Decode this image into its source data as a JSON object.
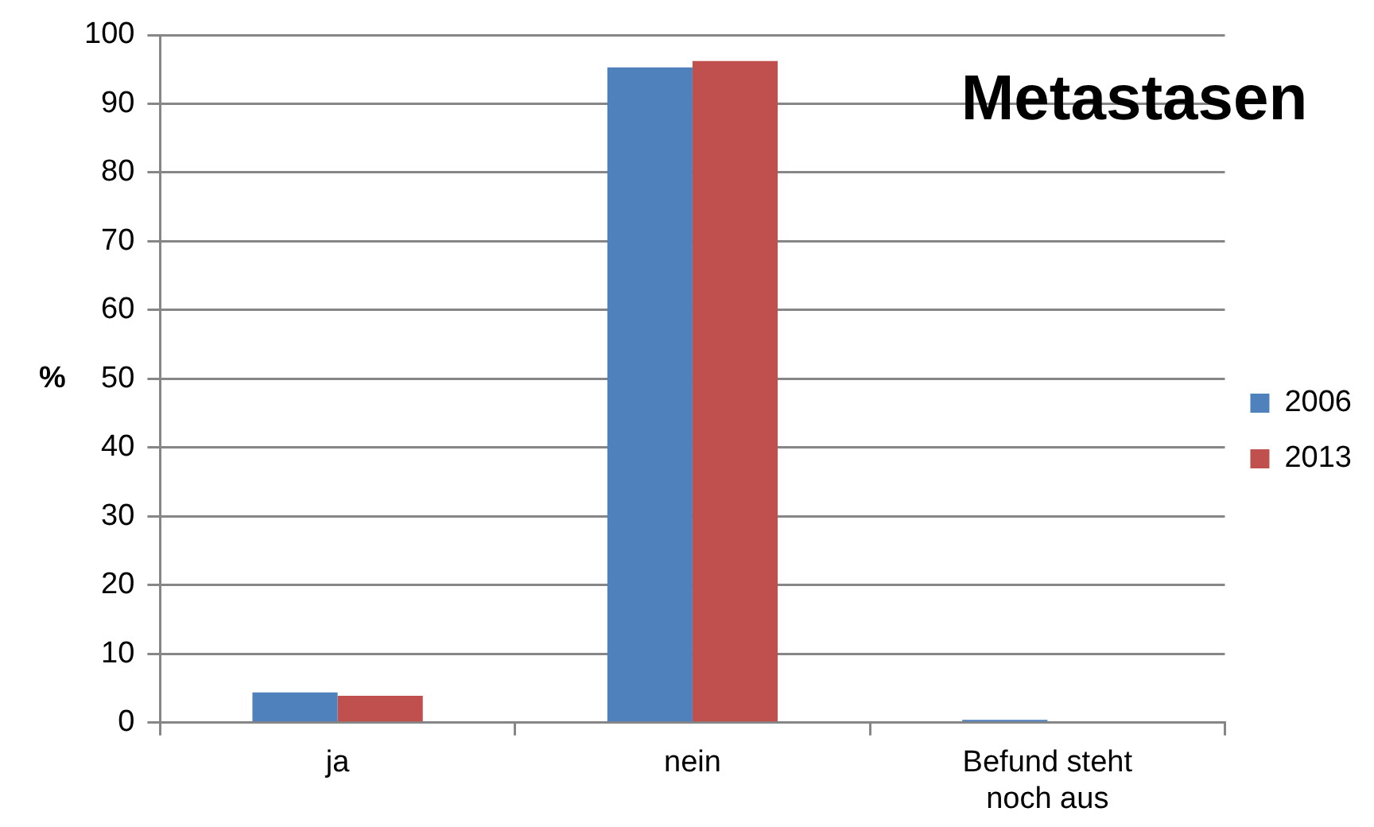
{
  "chart_data": {
    "type": "bar",
    "categories": [
      "ja",
      "nein",
      "Befund steht noch aus"
    ],
    "series": [
      {
        "name": "2006",
        "color": "#4f81bd",
        "values": [
          4.4,
          95.3,
          0.4
        ]
      },
      {
        "name": "2013",
        "color": "#c0504d",
        "values": [
          3.9,
          96.2,
          0
        ]
      }
    ],
    "ylabel": "%",
    "ylim": [
      0,
      100
    ],
    "yticks": [
      0,
      10,
      20,
      30,
      40,
      50,
      60,
      70,
      80,
      90,
      100
    ],
    "grid": "y",
    "legend": "right",
    "annotations": [
      "Metastasen"
    ]
  }
}
